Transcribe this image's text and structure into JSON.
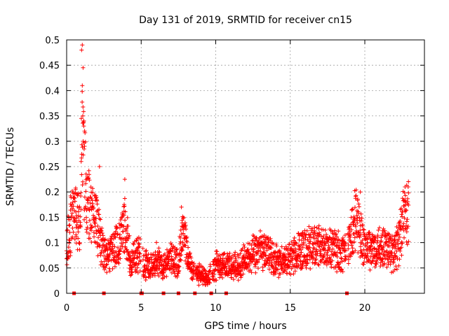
{
  "chart_data": {
    "type": "scatter",
    "title": "Day 131 of 2019, SRMTID for receiver cn15",
    "xlabel": "GPS time / hours",
    "ylabel": "SRMTID / TECUs",
    "xlim": [
      0,
      24
    ],
    "ylim": [
      0,
      0.5
    ],
    "grid": true,
    "marker": "+",
    "color": "#ff0000",
    "x_ticks": [
      0,
      5,
      10,
      15,
      20
    ],
    "x_tick_labels": [
      "0",
      "5",
      "10",
      "15",
      "20"
    ],
    "y_ticks": [
      0,
      0.05,
      0.1,
      0.15,
      0.2,
      0.25,
      0.3,
      0.35,
      0.4,
      0.45,
      0.5
    ],
    "y_tick_labels": [
      "0",
      "0.05",
      "0.1",
      "0.15",
      "0.2",
      "0.25",
      "0.3",
      "0.35",
      "0.4",
      "0.45",
      "0.5"
    ],
    "series": [
      {
        "name": "SRMTID",
        "envelope_hours": [
          0.0,
          0.3,
          0.6,
          0.9,
          1.0,
          1.1,
          1.3,
          1.6,
          2.0,
          2.3,
          2.6,
          3.0,
          3.5,
          3.9,
          4.3,
          4.8,
          5.2,
          5.6,
          6.0,
          6.5,
          7.0,
          7.5,
          7.8,
          8.2,
          8.7,
          9.0,
          9.4,
          10.0,
          10.5,
          11.0,
          11.5,
          12.0,
          12.5,
          13.0,
          13.5,
          14.0,
          14.5,
          15.0,
          15.5,
          16.0,
          16.5,
          17.0,
          17.5,
          18.0,
          18.5,
          19.0,
          19.4,
          19.7,
          20.0,
          20.5,
          21.0,
          21.5,
          22.0,
          22.3,
          22.6,
          22.9
        ],
        "envelope_tecu": [
          0.09,
          0.14,
          0.15,
          0.13,
          0.3,
          0.28,
          0.2,
          0.16,
          0.14,
          0.1,
          0.07,
          0.08,
          0.1,
          0.14,
          0.06,
          0.08,
          0.06,
          0.05,
          0.07,
          0.05,
          0.07,
          0.06,
          0.12,
          0.06,
          0.04,
          0.035,
          0.03,
          0.055,
          0.06,
          0.05,
          0.055,
          0.065,
          0.075,
          0.085,
          0.08,
          0.065,
          0.06,
          0.07,
          0.08,
          0.09,
          0.095,
          0.09,
          0.085,
          0.09,
          0.075,
          0.1,
          0.15,
          0.12,
          0.09,
          0.085,
          0.095,
          0.09,
          0.08,
          0.1,
          0.15,
          0.16
        ],
        "peaks": [
          {
            "x": 1.05,
            "y": 0.49
          },
          {
            "x": 1.0,
            "y": 0.48
          },
          {
            "x": 1.1,
            "y": 0.445
          },
          {
            "x": 1.05,
            "y": 0.41
          },
          {
            "x": 1.08,
            "y": 0.35
          },
          {
            "x": 1.15,
            "y": 0.33
          },
          {
            "x": 1.2,
            "y": 0.29
          },
          {
            "x": 2.2,
            "y": 0.25
          },
          {
            "x": 3.9,
            "y": 0.225
          },
          {
            "x": 7.7,
            "y": 0.17
          },
          {
            "x": 19.7,
            "y": 0.2
          },
          {
            "x": 22.7,
            "y": 0.21
          }
        ],
        "zero_values_hours": [
          0.5,
          2.5,
          5.0,
          5.05,
          6.5,
          7.5,
          8.6,
          9.7,
          10.7,
          18.8
        ]
      }
    ]
  }
}
